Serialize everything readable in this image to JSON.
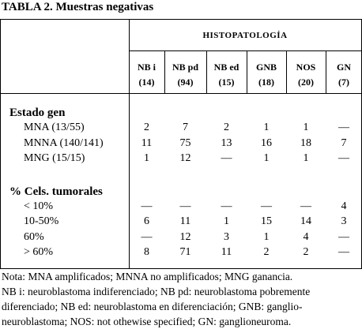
{
  "title": "TABLA 2. Muestras negativas",
  "table": {
    "group_header": "HISTOPATOLOGÍA",
    "columns": [
      [
        "NB i",
        "(14)"
      ],
      [
        "NB pd",
        "(94)"
      ],
      [
        "NB ed",
        "(15)"
      ],
      [
        "GNB",
        "(18)"
      ],
      [
        "NOS",
        "(20)"
      ],
      [
        "GN",
        "(7)"
      ]
    ],
    "sections": [
      {
        "label": "Estado gen",
        "rows": [
          {
            "label": "MNA (13/55)",
            "cells": [
              2,
              7,
              2,
              1,
              1,
              "—"
            ]
          },
          {
            "label": "MNNA (140/141)",
            "cells": [
              11,
              75,
              13,
              16,
              18,
              7
            ]
          },
          {
            "label": "MNG (15/15)",
            "cells": [
              1,
              12,
              "—",
              1,
              1,
              "—"
            ]
          }
        ]
      },
      {
        "label": "% Cels. tumorales",
        "rows": [
          {
            "label": "< 10%",
            "cells": [
              "—",
              "—",
              "—",
              "—",
              "—",
              4
            ]
          },
          {
            "label": "10-50%",
            "cells": [
              6,
              11,
              1,
              15,
              14,
              3
            ]
          },
          {
            "label": "60%",
            "cells": [
              "—",
              12,
              3,
              1,
              4,
              "—"
            ]
          },
          {
            "label": "> 60%",
            "cells": [
              8,
              71,
              11,
              2,
              2,
              "—"
            ]
          }
        ]
      }
    ]
  },
  "note": [
    "Nota: MNA amplificados; MNNA no amplificados; MNG ganancia.",
    "NB i: neuroblastoma indiferenciado; NB pd: neuroblastoma pobremente",
    "diferenciado; NB ed: neuroblastoma en diferenciación; GNB: ganglio-",
    "neuroblastoma; NOS: not othewise specified; GN: ganglioneuroma."
  ]
}
